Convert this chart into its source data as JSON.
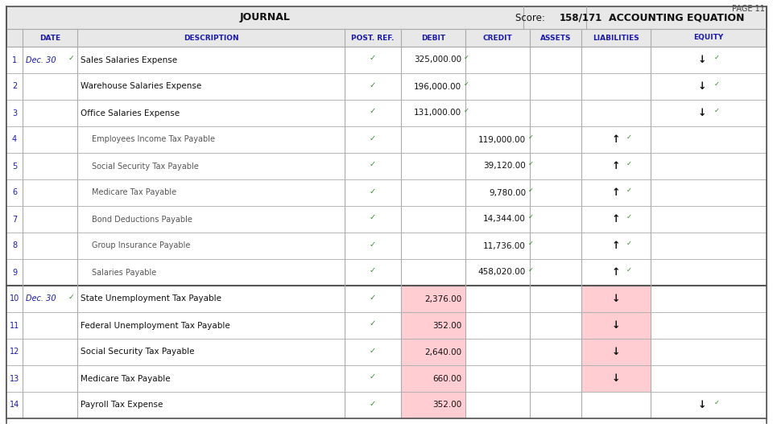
{
  "page_label": "PAGE 11",
  "journal_label": "JOURNAL",
  "score_label": "Score: 158/171",
  "accounting_label": "ACCOUNTING EQUATION",
  "rows": [
    {
      "row": 1,
      "date": "Dec. 30",
      "date_check": true,
      "desc": "Sales Salaries Expense",
      "indented": false,
      "post_check": true,
      "debit": "325,000.00",
      "debit_check": true,
      "credit": "",
      "credit_check": false,
      "liab": "",
      "liab_check": false,
      "equity": "↓",
      "equity_check": true,
      "pink_debit": false,
      "pink_liab": false
    },
    {
      "row": 2,
      "date": "",
      "date_check": false,
      "desc": "Warehouse Salaries Expense",
      "indented": false,
      "post_check": true,
      "debit": "196,000.00",
      "debit_check": true,
      "credit": "",
      "credit_check": false,
      "liab": "",
      "liab_check": false,
      "equity": "↓",
      "equity_check": true,
      "pink_debit": false,
      "pink_liab": false
    },
    {
      "row": 3,
      "date": "",
      "date_check": false,
      "desc": "Office Salaries Expense",
      "indented": false,
      "post_check": true,
      "debit": "131,000.00",
      "debit_check": true,
      "credit": "",
      "credit_check": false,
      "liab": "",
      "liab_check": false,
      "equity": "↓",
      "equity_check": true,
      "pink_debit": false,
      "pink_liab": false
    },
    {
      "row": 4,
      "date": "",
      "date_check": false,
      "desc": "Employees Income Tax Payable",
      "indented": true,
      "post_check": true,
      "debit": "",
      "credit": "119,000.00",
      "credit_check": true,
      "liab": "↑",
      "liab_check": true,
      "equity": "",
      "equity_check": false,
      "pink_debit": false,
      "pink_liab": false
    },
    {
      "row": 5,
      "date": "",
      "date_check": false,
      "desc": "Social Security Tax Payable",
      "indented": true,
      "post_check": true,
      "debit": "",
      "credit": "39,120.00",
      "credit_check": true,
      "liab": "↑",
      "liab_check": true,
      "equity": "",
      "equity_check": false,
      "pink_debit": false,
      "pink_liab": false
    },
    {
      "row": 6,
      "date": "",
      "date_check": false,
      "desc": "Medicare Tax Payable",
      "indented": true,
      "post_check": true,
      "debit": "",
      "credit": "9,780.00",
      "credit_check": true,
      "liab": "↑",
      "liab_check": true,
      "equity": "",
      "equity_check": false,
      "pink_debit": false,
      "pink_liab": false
    },
    {
      "row": 7,
      "date": "",
      "date_check": false,
      "desc": "Bond Deductions Payable",
      "indented": true,
      "post_check": true,
      "debit": "",
      "credit": "14,344.00",
      "credit_check": true,
      "liab": "↑",
      "liab_check": true,
      "equity": "",
      "equity_check": false,
      "pink_debit": false,
      "pink_liab": false
    },
    {
      "row": 8,
      "date": "",
      "date_check": false,
      "desc": "Group Insurance Payable",
      "indented": true,
      "post_check": true,
      "debit": "",
      "credit": "11,736.00",
      "credit_check": true,
      "liab": "↑",
      "liab_check": true,
      "equity": "",
      "equity_check": false,
      "pink_debit": false,
      "pink_liab": false
    },
    {
      "row": 9,
      "date": "",
      "date_check": false,
      "desc": "Salaries Payable",
      "indented": true,
      "post_check": true,
      "debit": "",
      "credit": "458,020.00",
      "credit_check": true,
      "liab": "↑",
      "liab_check": true,
      "equity": "",
      "equity_check": false,
      "pink_debit": false,
      "pink_liab": false
    },
    {
      "row": 10,
      "date": "Dec. 30",
      "date_check": true,
      "desc": "State Unemployment Tax Payable",
      "indented": false,
      "post_check": true,
      "debit": "2,376.00",
      "debit_check": false,
      "credit": "",
      "credit_check": false,
      "liab": "↓",
      "liab_check": false,
      "equity": "",
      "equity_check": false,
      "pink_debit": true,
      "pink_liab": true
    },
    {
      "row": 11,
      "date": "",
      "date_check": false,
      "desc": "Federal Unemployment Tax Payable",
      "indented": false,
      "post_check": true,
      "debit": "352.00",
      "debit_check": false,
      "credit": "",
      "credit_check": false,
      "liab": "↓",
      "liab_check": false,
      "equity": "",
      "equity_check": false,
      "pink_debit": true,
      "pink_liab": true
    },
    {
      "row": 12,
      "date": "",
      "date_check": false,
      "desc": "Social Security Tax Payable",
      "indented": false,
      "post_check": true,
      "debit": "2,640.00",
      "debit_check": false,
      "credit": "",
      "credit_check": false,
      "liab": "↓",
      "liab_check": false,
      "equity": "",
      "equity_check": false,
      "pink_debit": true,
      "pink_liab": true
    },
    {
      "row": 13,
      "date": "",
      "date_check": false,
      "desc": "Medicare Tax Payable",
      "indented": false,
      "post_check": true,
      "debit": "660.00",
      "debit_check": false,
      "credit": "",
      "credit_check": false,
      "liab": "↓",
      "liab_check": false,
      "equity": "",
      "equity_check": false,
      "pink_debit": true,
      "pink_liab": true
    },
    {
      "row": 14,
      "date": "",
      "date_check": false,
      "desc": "Payroll Tax Expense",
      "indented": false,
      "post_check": true,
      "debit": "352.00",
      "debit_check": false,
      "credit": "",
      "credit_check": false,
      "liab": "",
      "liab_check": false,
      "equity": "↓",
      "equity_check": true,
      "pink_debit": true,
      "pink_liab": false
    }
  ],
  "bg_header": "#e8e8e8",
  "bg_white": "#ffffff",
  "bg_pink": "#ffcdd2",
  "color_border": "#aaaaaa",
  "color_border_thick": "#555555",
  "color_check": "#2e8b22",
  "color_blue": "#1a1aaa",
  "color_black": "#111111",
  "color_gray_text": "#555555",
  "check_mark": "✓"
}
